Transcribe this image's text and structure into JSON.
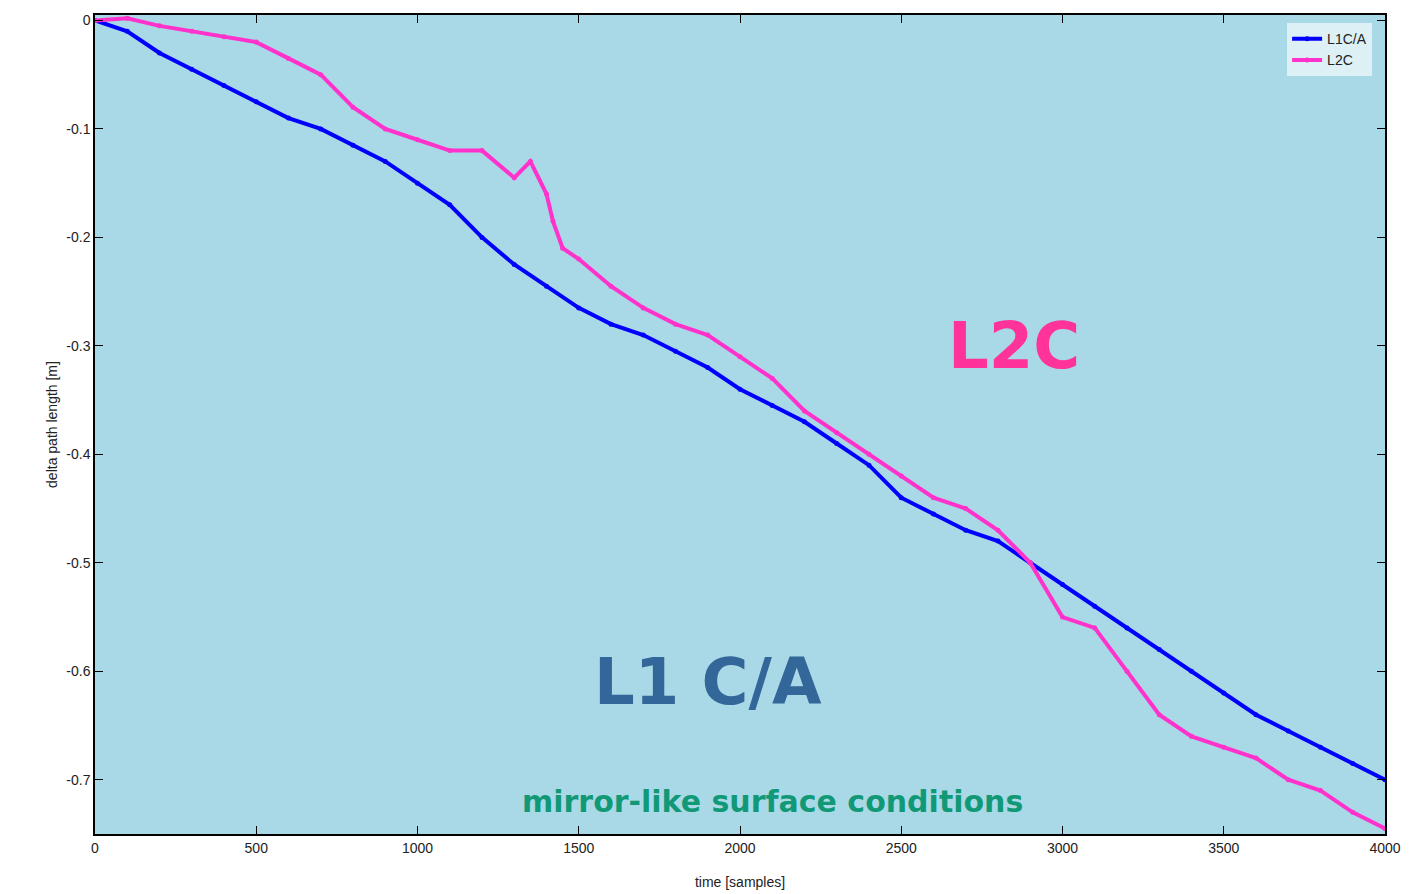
{
  "chart_data": {
    "type": "scatter",
    "x_label": "time [samples]",
    "y_label": "delta path length [m]",
    "xlim": [
      0,
      4000
    ],
    "xticks": [
      0,
      500,
      1000,
      1500,
      2000,
      2500,
      3000,
      3500,
      4000
    ],
    "ylim": [
      -0.75,
      0.005
    ],
    "yticks": [
      0,
      -0.1,
      -0.2,
      -0.3,
      -0.4,
      -0.5,
      -0.6,
      -0.7
    ],
    "grid": false,
    "legend": "top-right",
    "marker": "circle",
    "series": [
      {
        "name": "L1C/A",
        "color": "#0000ff",
        "x": [
          0,
          100,
          200,
          300,
          400,
          500,
          600,
          700,
          800,
          900,
          1000,
          1100,
          1200,
          1300,
          1400,
          1500,
          1600,
          1700,
          1800,
          1900,
          2000,
          2100,
          2200,
          2300,
          2400,
          2500,
          2600,
          2700,
          2800,
          2900,
          3000,
          3100,
          3200,
          3300,
          3400,
          3500,
          3600,
          3700,
          3800,
          3900,
          4000
        ],
        "values": [
          0,
          -0.01,
          -0.03,
          -0.045,
          -0.06,
          -0.075,
          -0.09,
          -0.1,
          -0.115,
          -0.13,
          -0.15,
          -0.17,
          -0.2,
          -0.225,
          -0.245,
          -0.265,
          -0.28,
          -0.29,
          -0.305,
          -0.32,
          -0.34,
          -0.355,
          -0.37,
          -0.39,
          -0.41,
          -0.44,
          -0.455,
          -0.47,
          -0.48,
          -0.5,
          -0.52,
          -0.54,
          -0.56,
          -0.58,
          -0.6,
          -0.62,
          -0.64,
          -0.655,
          -0.67,
          -0.685,
          -0.7
        ]
      },
      {
        "name": "L2C",
        "color": "#ff33cc",
        "x": [
          0,
          100,
          200,
          300,
          400,
          500,
          600,
          700,
          800,
          900,
          1000,
          1100,
          1200,
          1300,
          1350,
          1400,
          1420,
          1450,
          1500,
          1600,
          1700,
          1800,
          1900,
          2000,
          2100,
          2200,
          2300,
          2400,
          2500,
          2600,
          2700,
          2800,
          2900,
          3000,
          3100,
          3200,
          3300,
          3400,
          3500,
          3600,
          3700,
          3800,
          3900,
          4000
        ],
        "values": [
          0,
          0.002,
          -0.005,
          -0.01,
          -0.015,
          -0.02,
          -0.035,
          -0.05,
          -0.08,
          -0.1,
          -0.11,
          -0.12,
          -0.12,
          -0.145,
          -0.13,
          -0.16,
          -0.185,
          -0.21,
          -0.22,
          -0.245,
          -0.265,
          -0.28,
          -0.29,
          -0.31,
          -0.33,
          -0.36,
          -0.38,
          -0.4,
          -0.42,
          -0.44,
          -0.45,
          -0.47,
          -0.5,
          -0.55,
          -0.56,
          -0.6,
          -0.64,
          -0.66,
          -0.67,
          -0.68,
          -0.7,
          -0.71,
          -0.73,
          -0.745
        ]
      }
    ],
    "annotations": [
      {
        "text": "L2C",
        "x": 2850,
        "y": -0.3,
        "color": "#ff3399"
      },
      {
        "text": "L1 C/A",
        "x": 1900,
        "y": -0.61,
        "color": "#336699"
      },
      {
        "text": "mirror-like surface conditions",
        "x": 2100,
        "y": -0.72,
        "color": "#119977"
      }
    ]
  }
}
